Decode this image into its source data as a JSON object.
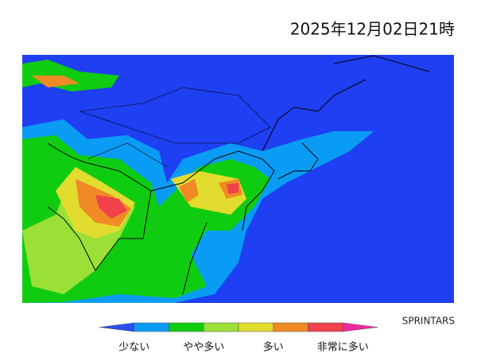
{
  "title": "2025年12月02日21時",
  "credit": "SPRINTARS",
  "legend": {
    "colors": [
      "#2a4ef0",
      "#0a9cf5",
      "#10cc10",
      "#9be036",
      "#e2dc2e",
      "#ef8a24",
      "#f0424a",
      "#ee2aa0"
    ],
    "labels": [
      "少ない",
      "やや多い",
      "多い",
      "非常に多い"
    ]
  }
}
